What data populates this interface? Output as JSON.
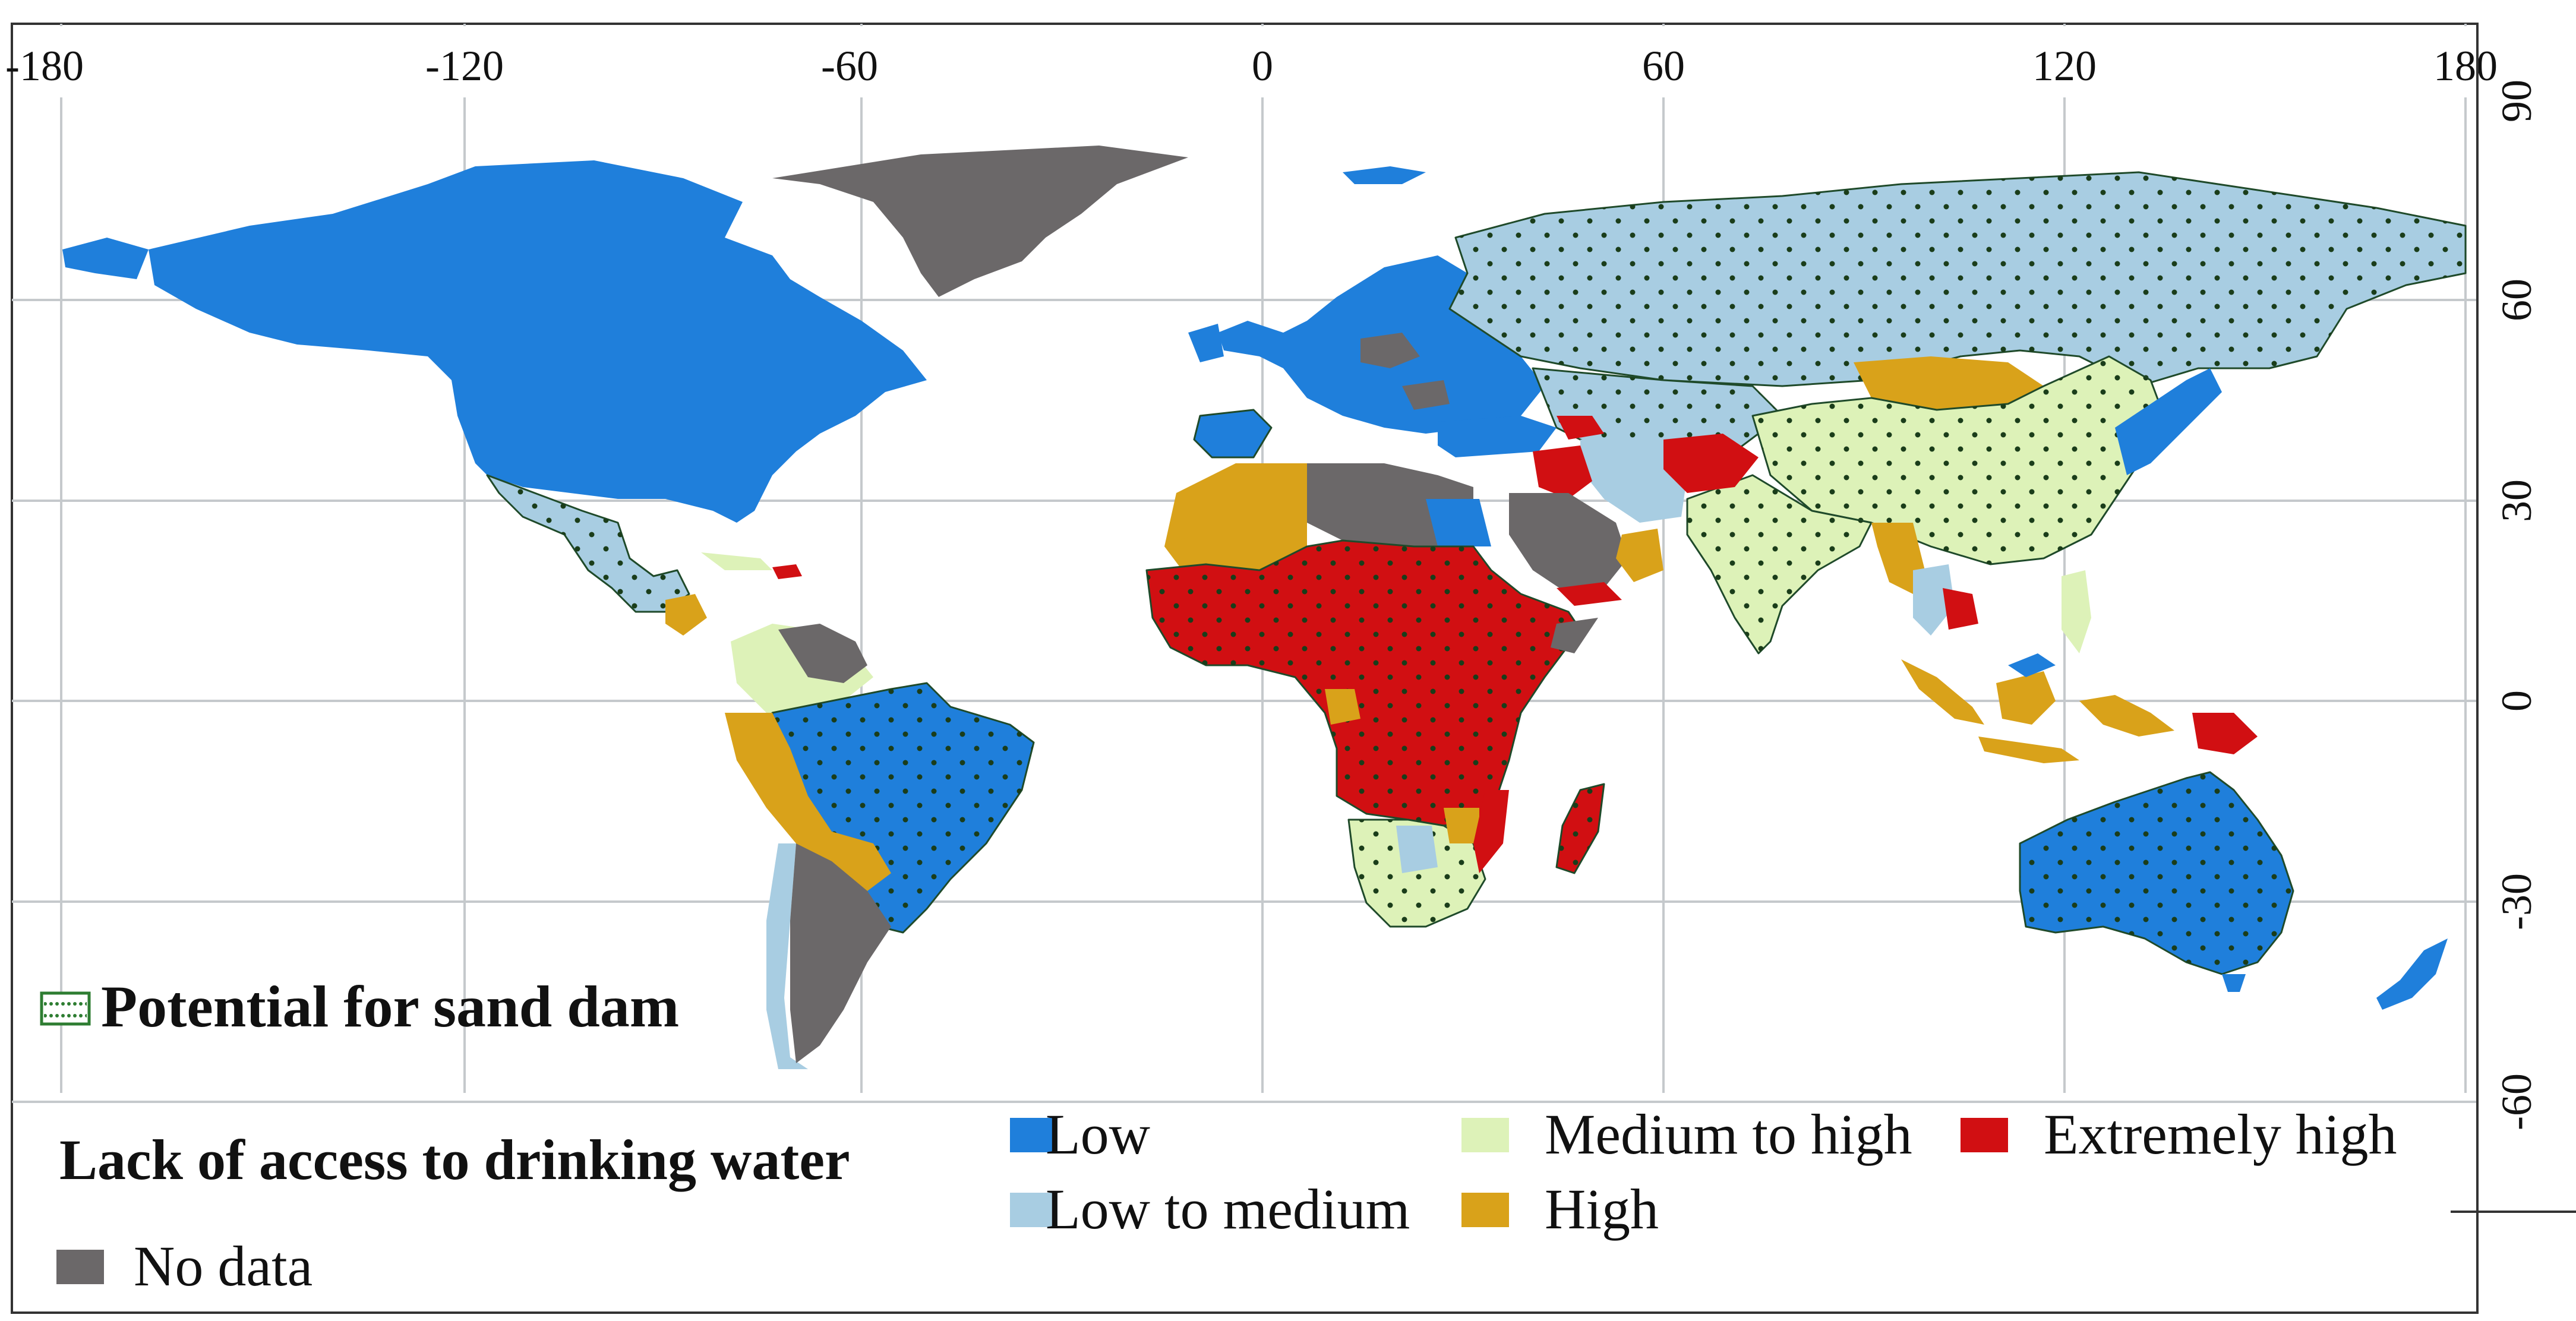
{
  "map": {
    "lon_ticks": [
      "-180",
      "-120",
      "-60",
      "0",
      "60",
      "120",
      "180"
    ],
    "lat_ticks": [
      "90",
      "60",
      "30",
      "0",
      "-30",
      "-60"
    ]
  },
  "legend": {
    "sand_dam_label": "Potential for sand dam",
    "title": "Lack of access to drinking water",
    "items": [
      {
        "key": "low",
        "label": "Low",
        "color": "#1f7fdb"
      },
      {
        "key": "low-to-medium",
        "label": "Low to medium",
        "color": "#a8cde2"
      },
      {
        "key": "medium-to-high",
        "label": "Medium to high",
        "color": "#ddf2b8"
      },
      {
        "key": "high",
        "label": "High",
        "color": "#d9a21a"
      },
      {
        "key": "extremely-high",
        "label": "Extremely high",
        "color": "#d10f12"
      },
      {
        "key": "no-data",
        "label": "No data",
        "color": "#6b6869"
      }
    ],
    "hatch_color": "#2e7d32"
  }
}
